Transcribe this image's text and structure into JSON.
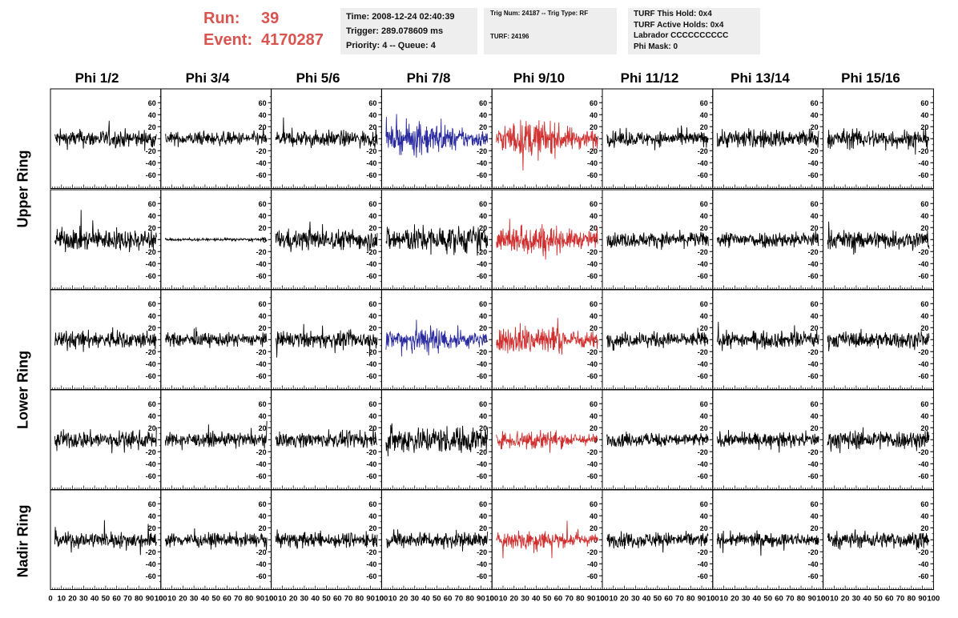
{
  "run_event": {
    "run_label": "Run:",
    "run_value": "39",
    "event_label": "Event:",
    "event_value": "4170287"
  },
  "time_box": {
    "time": "Time: 2008-12-24 02:40:39",
    "trigger": "Trigger: 289.078609 ms",
    "priority": "Priority: 4 -- Queue: 4"
  },
  "trig_box": {
    "trig": "Trig Num: 24187 -- Trig Type: RF",
    "turf": "TURF: 24196"
  },
  "turf_box": {
    "this_hold": "TURF This Hold: 0x4",
    "active_holds": "TURF Active Holds: 0x4",
    "labrador": "Labrador CCCCCCCCCC",
    "phi_mask": "Phi Mask: 0"
  },
  "phi_headers": [
    "Phi 1/2",
    "Phi 3/4",
    "Phi 5/6",
    "Phi 7/8",
    "Phi 9/10",
    "Phi 11/12",
    "Phi 13/14",
    "Phi 15/16"
  ],
  "ring_labels": [
    "Upper Ring",
    "Lower Ring",
    "Nadir Ring"
  ],
  "colors": {
    "trace_default": "#000000",
    "trace_blue": "#2a2aa0",
    "trace_red": "#d03030",
    "run_event": "#d9534f",
    "info_box_bg": "#eeeeee"
  },
  "chart_data": {
    "type": "line",
    "panel_rows": 5,
    "panel_cols": 8,
    "x_range": [
      0,
      100
    ],
    "y_range": [
      -75,
      75
    ],
    "x_ticks": [
      "0",
      "10",
      "20",
      "30",
      "40",
      "50",
      "60",
      "70",
      "80",
      "90",
      "100"
    ],
    "y_ticks": [
      "-60",
      "-40",
      "-20",
      "0",
      "20",
      "40",
      "60"
    ],
    "trace_colors": [
      [
        "black",
        "black",
        "black",
        "blue",
        "red",
        "black",
        "black",
        "black"
      ],
      [
        "black",
        "black",
        "black",
        "black",
        "red",
        "black",
        "black",
        "black"
      ],
      [
        "black",
        "black",
        "black",
        "blue",
        "red",
        "black",
        "black",
        "black"
      ],
      [
        "black",
        "black",
        "black",
        "black",
        "red",
        "black",
        "black",
        "black"
      ],
      [
        "black",
        "black",
        "black",
        "black",
        "red",
        "black",
        "black",
        "black"
      ]
    ],
    "amplitudes": [
      [
        13,
        10,
        12,
        22,
        25,
        11,
        14,
        14
      ],
      [
        16,
        2,
        15,
        20,
        22,
        11,
        12,
        14
      ],
      [
        13,
        10,
        12,
        20,
        22,
        11,
        12,
        12
      ],
      [
        13,
        10,
        11,
        20,
        15,
        10,
        10,
        14
      ],
      [
        12,
        10,
        11,
        12,
        15,
        11,
        10,
        12
      ]
    ]
  }
}
